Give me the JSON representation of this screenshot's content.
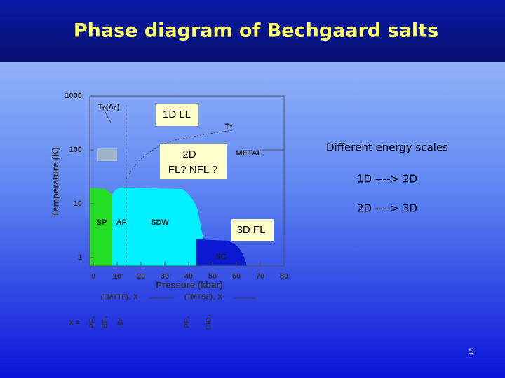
{
  "header": {
    "title": "Phase diagram of Bechgaard salts"
  },
  "figure": {
    "y_axis_label": "Temperature (K)",
    "x_axis_label": "Pressure (kbar)",
    "y_tick_labels": [
      "1000",
      "100",
      "10",
      "1"
    ],
    "x_tick_labels": [
      "0",
      "10",
      "20",
      "30",
      "40",
      "50",
      "60",
      "70",
      "80"
    ],
    "region_labels": [
      "SP",
      "AF",
      "SDW",
      "SC",
      "METAL"
    ],
    "curve_labels": [
      "Tₚ(Λₚ)",
      "T*"
    ],
    "compound_labels": [
      "(TMTTF)₂ X",
      "(TMTSF)₂ X"
    ],
    "anion_prefix": "X =",
    "anions": [
      "PF₆",
      "BF₄",
      "Br",
      "PF₆",
      "ClO₄"
    ]
  },
  "boxes": [
    [
      "1D LL"
    ],
    [
      "2D",
      "FL? NFL ?"
    ],
    [
      "3D FL"
    ]
  ],
  "notes": [
    "Different energy scales",
    "1D ----> 2D",
    "2D ----> 3D"
  ],
  "page_number": "5"
}
